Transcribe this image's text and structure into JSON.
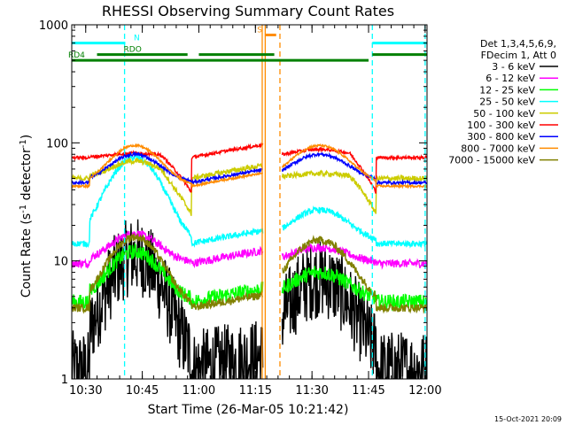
{
  "chart_data": {
    "type": "line",
    "title": "RHESSI Observing Summary Count Rates",
    "xlabel": "Start Time (26-Mar-05 10:21:42)",
    "ylabel_main": "Count Rate (s",
    "ylabel_sup1": "-1",
    "ylabel_mid": " detector",
    "ylabel_sup2": "-1",
    "ylabel_end": ")",
    "yscale": "log",
    "ylim": [
      1,
      1000
    ],
    "xlim_minutes": [
      26.3,
      120.5
    ],
    "y_ticks": [
      {
        "value": 1,
        "label": "1"
      },
      {
        "value": 10,
        "label": "10"
      },
      {
        "value": 100,
        "label": "100"
      },
      {
        "value": 1000,
        "label": "1000"
      }
    ],
    "x_ticks": [
      {
        "value": 30,
        "label": "10:30"
      },
      {
        "value": 45,
        "label": "10:45"
      },
      {
        "value": 60,
        "label": "11:00"
      },
      {
        "value": 75,
        "label": "11:15"
      },
      {
        "value": 90,
        "label": "11:30"
      },
      {
        "value": 105,
        "label": "11:45"
      },
      {
        "value": 120,
        "label": "12:00"
      }
    ],
    "legend_header": [
      "Det 1,3,4,5,6,9,",
      "FDecim 1, Att 0"
    ],
    "legend_position": "right",
    "series": [
      {
        "name": "3 - 6 keV",
        "color": "#000000",
        "night": 1.2,
        "peak": 11,
        "peak2": 7,
        "noise": 0.35
      },
      {
        "name": "6 - 12 keV",
        "color": "#ff00ff",
        "night": 9.5,
        "peak": 17,
        "peak2": 13,
        "noise": 0.08
      },
      {
        "name": "12 - 25 keV",
        "color": "#00ff00",
        "night": 4.5,
        "peak": 12,
        "peak2": 8,
        "noise": 0.15
      },
      {
        "name": "25 - 50 keV",
        "color": "#00ffff",
        "night": 14,
        "peak": 75,
        "peak2": 27,
        "noise": 0.06
      },
      {
        "name": "50 - 100 keV",
        "color": "#cccc00",
        "night": 50,
        "peak": 70,
        "peak2": 55,
        "noise": 0.05,
        "dip": 25
      },
      {
        "name": "100 - 300 keV",
        "color": "#ff0000",
        "night": 75,
        "peak": 82,
        "peak2": 88,
        "noise": 0.03,
        "dip": 38
      },
      {
        "name": "300 - 800 keV",
        "color": "#0000ff",
        "night": 46,
        "peak": 80,
        "peak2": 80,
        "noise": 0.03
      },
      {
        "name": "800 - 7000 keV",
        "color": "#ff8c00",
        "night": 43,
        "peak": 95,
        "peak2": 95,
        "noise": 0.02
      },
      {
        "name": "7000 - 15000 keV",
        "color": "#808000",
        "night": 4,
        "peak": 16,
        "peak2": 15,
        "noise": 0.08
      }
    ],
    "segment_bars": [
      {
        "label": "N",
        "color": "#00ffff",
        "ranges": [
          [
            26.3,
            40.5
          ],
          [
            106,
            120.5
          ]
        ],
        "value": 700
      },
      {
        "label": "S",
        "color": "#ff8c00",
        "ranges": [
          [
            77.5,
            80.5
          ]
        ],
        "value": 820
      },
      {
        "label": "RDO",
        "color": "#008000",
        "ranges": [
          [
            33,
            57
          ],
          [
            60,
            80
          ],
          [
            106,
            120.5
          ]
        ],
        "value": 560
      },
      {
        "label": "RD4",
        "color": "#008000",
        "ranges": [
          [
            26.3,
            105
          ]
        ],
        "value": 500
      }
    ],
    "vertical_markers": [
      {
        "x": 40.3,
        "color": "#00ffff",
        "style": "dashed"
      },
      {
        "x": 106,
        "color": "#00ffff",
        "style": "dashed"
      },
      {
        "x": 120,
        "color": "#00ffff",
        "style": "dashed"
      },
      {
        "x": 81.5,
        "color": "#ff8c00",
        "style": "dashed"
      },
      {
        "x": 76.8,
        "color": "#ff8c00",
        "style": "solid"
      },
      {
        "x": 77.6,
        "color": "#ff8c00",
        "style": "solid"
      }
    ],
    "timestamp": "15-Oct-2021 20:09"
  }
}
